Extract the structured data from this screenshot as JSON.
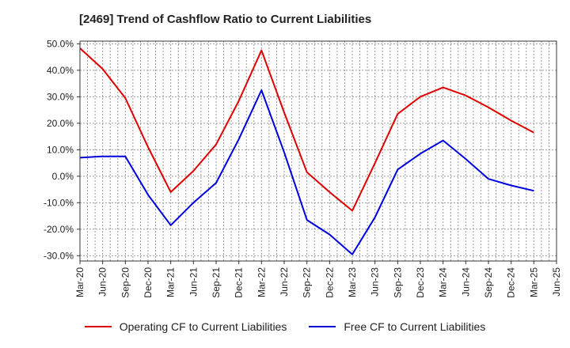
{
  "chart_data": {
    "type": "line",
    "title": "[2469]  Trend of Cashflow Ratio to Current Liabilities",
    "xlabel": "",
    "ylabel": "",
    "categories": [
      "Mar-20",
      "Jun-20",
      "Sep-20",
      "Dec-20",
      "Mar-21",
      "Jun-21",
      "Sep-21",
      "Dec-21",
      "Mar-22",
      "Jun-22",
      "Sep-22",
      "Dec-22",
      "Mar-23",
      "Jun-23",
      "Sep-23",
      "Dec-23",
      "Mar-24",
      "Jun-24",
      "Sep-24",
      "Dec-24",
      "Mar-25",
      "Jun-25"
    ],
    "y_ticks": [
      "50.0%",
      "40.0%",
      "30.0%",
      "20.0%",
      "10.0%",
      "0.0%",
      "-10.0%",
      "-20.0%",
      "-30.0%"
    ],
    "ylim": [
      -32,
      51
    ],
    "grid": true,
    "legend_position": "bottom",
    "series": [
      {
        "name": "Operating CF to Current Liabilities",
        "color": "#e00000",
        "values": [
          48.3,
          40.5,
          29.5,
          11.0,
          -6.0,
          2.0,
          12.0,
          28.5,
          47.5,
          24.0,
          1.5,
          -6.0,
          -13.0,
          5.0,
          23.5,
          30.0,
          33.5,
          30.5,
          26.0,
          21.0,
          16.5,
          null
        ]
      },
      {
        "name": "Free CF to Current Liabilities",
        "color": "#0000e0",
        "values": [
          7.0,
          7.5,
          7.5,
          -7.0,
          -18.5,
          -10.0,
          -2.5,
          14.0,
          32.5,
          9.0,
          -16.5,
          -22.0,
          -29.5,
          -15.5,
          2.5,
          8.5,
          13.5,
          6.5,
          -1.0,
          -3.5,
          -5.5,
          null
        ]
      }
    ]
  }
}
